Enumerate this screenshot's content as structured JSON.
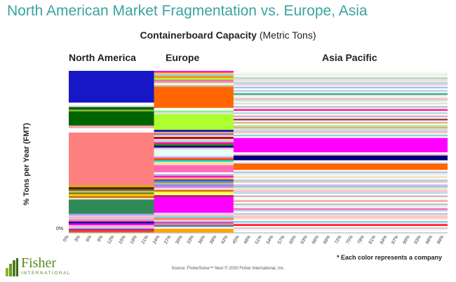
{
  "slide_title": "North American Market Fragmentation vs. Europe, Asia",
  "chart_data": {
    "type": "bar",
    "title_bold": "Containerboard Capacity",
    "title_rest": " (Metric Tons)",
    "ylabel": "% Tons per Year (FMT)",
    "y_zero_label": "0%",
    "xlim": [
      0,
      100
    ],
    "x_ticks": [
      "0%",
      "3%",
      "6%",
      "9%",
      "12%",
      "15%",
      "18%",
      "21%",
      "24%",
      "27%",
      "30%",
      "33%",
      "36%",
      "39%",
      "42%",
      "45%",
      "48%",
      "51%",
      "54%",
      "57%",
      "60%",
      "63%",
      "66%",
      "69%",
      "72%",
      "75%",
      "78%",
      "81%",
      "84%",
      "87%",
      "90%",
      "93%",
      "96%",
      "99%"
    ],
    "regions": [
      {
        "name": "North America",
        "x_start": 0,
        "x_end": 22.5,
        "segments": [
          {
            "share": 18.0,
            "color": "#1717c7"
          },
          {
            "share": 1.5,
            "color": "#ffffff"
          },
          {
            "share": 1.0,
            "color": "#e8e8e8"
          },
          {
            "share": 1.5,
            "color": "#006400"
          },
          {
            "share": 1.0,
            "color": "#8fbc3f"
          },
          {
            "share": 8.0,
            "color": "#006400"
          },
          {
            "share": 1.5,
            "color": "#f0a8a8"
          },
          {
            "share": 2.5,
            "color": "#ffffff"
          },
          {
            "share": 30.0,
            "color": "#ff8080"
          },
          {
            "share": 1.0,
            "color": "#c0c000"
          },
          {
            "share": 1.0,
            "color": "#8b0000"
          },
          {
            "share": 1.0,
            "color": "#228b22"
          },
          {
            "share": 1.0,
            "color": "#ffa07a"
          },
          {
            "share": 1.0,
            "color": "#6b8e23"
          },
          {
            "share": 1.0,
            "color": "#ffd700"
          },
          {
            "share": 1.0,
            "color": "#d2691e"
          },
          {
            "share": 1.0,
            "color": "#f5deb3"
          },
          {
            "share": 8.0,
            "color": "#2e8b57"
          },
          {
            "share": 1.0,
            "color": "#a0a0ff"
          },
          {
            "share": 1.0,
            "color": "#ffc0cb"
          },
          {
            "share": 1.5,
            "color": "#d8bfd8"
          },
          {
            "share": 1.0,
            "color": "#ff69b4"
          },
          {
            "share": 1.0,
            "color": "#00008b"
          },
          {
            "share": 1.0,
            "color": "#ff00ff"
          },
          {
            "share": 1.0,
            "color": "#ffb6c1"
          },
          {
            "share": 1.0,
            "color": "#cccccc"
          },
          {
            "share": 1.0,
            "color": "#9932cc"
          },
          {
            "share": 1.0,
            "color": "#ff4500"
          }
        ]
      },
      {
        "name": "Europe",
        "x_start": 22.5,
        "x_end": 43.5,
        "segments": [
          {
            "share": 1.0,
            "color": "#ff00ff"
          },
          {
            "share": 1.0,
            "color": "#ffd700"
          },
          {
            "share": 1.0,
            "color": "#87cefa"
          },
          {
            "share": 1.0,
            "color": "#ff8c00"
          },
          {
            "share": 1.0,
            "color": "#adff2f"
          },
          {
            "share": 1.0,
            "color": "#ff69b4"
          },
          {
            "share": 1.0,
            "color": "#d2b48c"
          },
          {
            "share": 1.0,
            "color": "#ffffe0"
          },
          {
            "share": 1.0,
            "color": "#c0c0c0"
          },
          {
            "share": 12.0,
            "color": "#ff6600"
          },
          {
            "share": 1.5,
            "color": "#ffffff"
          },
          {
            "share": 1.0,
            "color": "#90ee90"
          },
          {
            "share": 1.0,
            "color": "#e0e0e0"
          },
          {
            "share": 9.0,
            "color": "#adff2f"
          },
          {
            "share": 1.0,
            "color": "#0000cd"
          },
          {
            "share": 1.0,
            "color": "#f4a460"
          },
          {
            "share": 1.0,
            "color": "#9370db"
          },
          {
            "share": 1.0,
            "color": "#ffe4b5"
          },
          {
            "share": 1.0,
            "color": "#8b0000"
          },
          {
            "share": 1.0,
            "color": "#ffc0cb"
          },
          {
            "share": 1.0,
            "color": "#add8e6"
          },
          {
            "share": 1.0,
            "color": "#ff1493"
          },
          {
            "share": 1.0,
            "color": "#228b22"
          },
          {
            "share": 1.0,
            "color": "#000080"
          },
          {
            "share": 1.0,
            "color": "#ffb6c1"
          },
          {
            "share": 4.0,
            "color": "#e0ffff"
          },
          {
            "share": 1.0,
            "color": "#dda0dd"
          },
          {
            "share": 1.0,
            "color": "#ff4500"
          },
          {
            "share": 1.0,
            "color": "#00ced1"
          },
          {
            "share": 1.0,
            "color": "#f0e68c"
          },
          {
            "share": 1.0,
            "color": "#ffdab9"
          },
          {
            "share": 4.0,
            "color": "#ff69b4"
          },
          {
            "share": 1.0,
            "color": "#ffffff"
          },
          {
            "share": 1.0,
            "color": "#b0c4de"
          },
          {
            "share": 1.0,
            "color": "#ff00ff"
          },
          {
            "share": 1.0,
            "color": "#ffd700"
          },
          {
            "share": 1.0,
            "color": "#8a2be2"
          },
          {
            "share": 1.0,
            "color": "#20b2aa"
          },
          {
            "share": 1.0,
            "color": "#ffa07a"
          },
          {
            "share": 1.0,
            "color": "#6495ed"
          },
          {
            "share": 1.0,
            "color": "#ee82ee"
          },
          {
            "share": 1.0,
            "color": "#ffe4e1"
          },
          {
            "share": 1.0,
            "color": "#d2691e"
          },
          {
            "share": 1.0,
            "color": "#ffff00"
          },
          {
            "share": 1.0,
            "color": "#f5f5dc"
          },
          {
            "share": 1.0,
            "color": "#a52a2a"
          },
          {
            "share": 9.0,
            "color": "#ff00ff"
          },
          {
            "share": 1.0,
            "color": "#e6e6fa"
          },
          {
            "share": 1.0,
            "color": "#ffb6c1"
          },
          {
            "share": 1.0,
            "color": "#87ceeb"
          },
          {
            "share": 1.0,
            "color": "#ff7f50"
          },
          {
            "share": 1.0,
            "color": "#dcdcdc"
          },
          {
            "share": 1.0,
            "color": "#ba55d3"
          },
          {
            "share": 1.0,
            "color": "#f08080"
          },
          {
            "share": 1.0,
            "color": "#4682b4"
          },
          {
            "share": 1.0,
            "color": "#ffffff"
          },
          {
            "share": 2.0,
            "color": "#ffa500"
          }
        ]
      },
      {
        "name": "Asia Pacific",
        "x_start": 43.5,
        "x_end": 100,
        "segments": [
          {
            "share": 1.0,
            "color": "#ffffe0"
          },
          {
            "share": 1.0,
            "color": "#e0ffff"
          },
          {
            "share": 1.0,
            "color": "#ffe4e1"
          },
          {
            "share": 1.0,
            "color": "#f0fff0"
          },
          {
            "share": 1.0,
            "color": "#add8e6"
          },
          {
            "share": 1.0,
            "color": "#ffdab9"
          },
          {
            "share": 1.0,
            "color": "#e6e6fa"
          },
          {
            "share": 1.0,
            "color": "#b0e0e6"
          },
          {
            "share": 1.0,
            "color": "#ffc0cb"
          },
          {
            "share": 1.0,
            "color": "#f5f5f5"
          },
          {
            "share": 1.0,
            "color": "#87cefa"
          },
          {
            "share": 1.0,
            "color": "#ffffff"
          },
          {
            "share": 1.0,
            "color": "#d8bfd8"
          },
          {
            "share": 1.0,
            "color": "#e0ffff"
          },
          {
            "share": 1.0,
            "color": "#20b2aa"
          },
          {
            "share": 1.0,
            "color": "#ffe4b5"
          },
          {
            "share": 1.0,
            "color": "#f0f8ff"
          },
          {
            "share": 1.0,
            "color": "#ffb6c1"
          },
          {
            "share": 1.0,
            "color": "#afeeee"
          },
          {
            "share": 1.0,
            "color": "#fffacd"
          },
          {
            "share": 1.0,
            "color": "#e0e0e0"
          },
          {
            "share": 1.0,
            "color": "#ffffff"
          },
          {
            "share": 1.0,
            "color": "#b0c4de"
          },
          {
            "share": 1.0,
            "color": "#ffe4e1"
          },
          {
            "share": 1.0,
            "color": "#ff1493"
          },
          {
            "share": 1.0,
            "color": "#f5fffa"
          },
          {
            "share": 1.0,
            "color": "#add8e6"
          },
          {
            "share": 1.0,
            "color": "#ffffe0"
          },
          {
            "share": 1.0,
            "color": "#dda0dd"
          },
          {
            "share": 1.0,
            "color": "#e0ffff"
          },
          {
            "share": 1.0,
            "color": "#a52a2a"
          },
          {
            "share": 1.0,
            "color": "#fff0f5"
          },
          {
            "share": 1.0,
            "color": "#d2b48c"
          },
          {
            "share": 1.0,
            "color": "#ffffff"
          },
          {
            "share": 1.0,
            "color": "#98fb98"
          },
          {
            "share": 1.0,
            "color": "#ffa07a"
          },
          {
            "share": 1.0,
            "color": "#e0e0e0"
          },
          {
            "share": 1.0,
            "color": "#b0e0e6"
          },
          {
            "share": 1.0,
            "color": "#ffb6c1"
          },
          {
            "share": 1.0,
            "color": "#fafad2"
          },
          {
            "share": 1.0,
            "color": "#87ceeb"
          },
          {
            "share": 1.0,
            "color": "#ffffff"
          },
          {
            "share": 9.0,
            "color": "#ff00ff"
          },
          {
            "share": 1.0,
            "color": "#ffffff"
          },
          {
            "share": 1.0,
            "color": "#ffc0cb"
          },
          {
            "share": 3.0,
            "color": "#000080"
          },
          {
            "share": 1.0,
            "color": "#ffffff"
          },
          {
            "share": 1.0,
            "color": "#e6e6fa"
          },
          {
            "share": 4.0,
            "color": "#ff6600"
          },
          {
            "share": 1.0,
            "color": "#ffffff"
          },
          {
            "share": 1.0,
            "color": "#b0c4de"
          },
          {
            "share": 1.0,
            "color": "#ffe4e1"
          },
          {
            "share": 1.0,
            "color": "#e0ffff"
          },
          {
            "share": 1.0,
            "color": "#ffdab9"
          },
          {
            "share": 1.0,
            "color": "#f0fff0"
          },
          {
            "share": 1.0,
            "color": "#add8e6"
          },
          {
            "share": 1.0,
            "color": "#ffb6c1"
          },
          {
            "share": 1.0,
            "color": "#ffffff"
          },
          {
            "share": 1.0,
            "color": "#d8bfd8"
          },
          {
            "share": 1.0,
            "color": "#87cefa"
          },
          {
            "share": 1.0,
            "color": "#ffe4b5"
          },
          {
            "share": 1.0,
            "color": "#e0e0e0"
          },
          {
            "share": 1.0,
            "color": "#ffc0cb"
          },
          {
            "share": 1.0,
            "color": "#b0e0e6"
          },
          {
            "share": 1.0,
            "color": "#ffffff"
          },
          {
            "share": 1.0,
            "color": "#dda0dd"
          },
          {
            "share": 1.0,
            "color": "#ffffe0"
          },
          {
            "share": 1.0,
            "color": "#e0ffff"
          },
          {
            "share": 1.0,
            "color": "#ffa07a"
          },
          {
            "share": 1.0,
            "color": "#ffffff"
          },
          {
            "share": 1.0,
            "color": "#b0c4de"
          },
          {
            "share": 1.0,
            "color": "#ffe4e1"
          },
          {
            "share": 1.0,
            "color": "#f5f5f5"
          },
          {
            "share": 1.0,
            "color": "#ff69b4"
          },
          {
            "share": 1.0,
            "color": "#add8e6"
          },
          {
            "share": 1.0,
            "color": "#ffffff"
          },
          {
            "share": 1.0,
            "color": "#d8bfd8"
          },
          {
            "share": 1.0,
            "color": "#e0e0e0"
          },
          {
            "share": 1.0,
            "color": "#ffc0cb"
          },
          {
            "share": 1.0,
            "color": "#ffdab9"
          },
          {
            "share": 1.0,
            "color": "#ffffff"
          },
          {
            "share": 1.0,
            "color": "#87ceeb"
          },
          {
            "share": 1.0,
            "color": "#e6e6fa"
          },
          {
            "share": 1.0,
            "color": "#ff0000"
          },
          {
            "share": 1.0,
            "color": "#ffffff"
          },
          {
            "share": 1.0,
            "color": "#ffb6c1"
          },
          {
            "share": 1.0,
            "color": "#e0ffff"
          },
          {
            "share": 1.0,
            "color": "#ffffff"
          }
        ]
      }
    ]
  },
  "note": "* Each color represents a company",
  "source": "Source: FisherSolve™ Next © 2020 Fisher International, Inc.",
  "logo": {
    "name": "Fisher",
    "sub": "INTERNATIONAL"
  }
}
